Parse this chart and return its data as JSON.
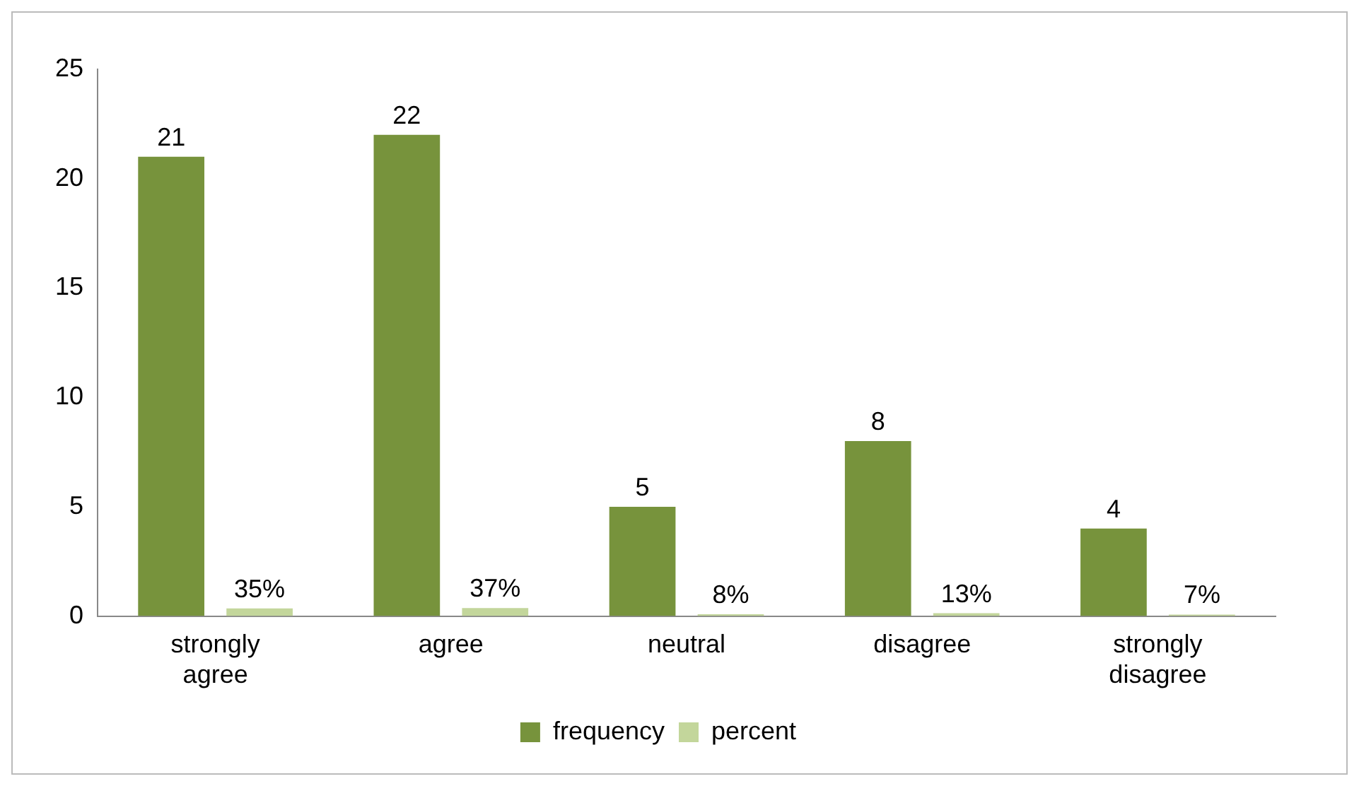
{
  "chart_data": {
    "type": "bar",
    "categories": [
      "strongly agree",
      "agree",
      "neutral",
      "disagree",
      "strongly disagree"
    ],
    "series": [
      {
        "name": "frequency",
        "color": "#77933c",
        "values": [
          21,
          22,
          5,
          8,
          4
        ],
        "value_labels": [
          "21",
          "22",
          "5",
          "8",
          "4"
        ]
      },
      {
        "name": "percent",
        "color": "#c3d69b",
        "values": [
          0.35,
          0.37,
          0.08,
          0.13,
          0.07
        ],
        "value_labels": [
          "35%",
          "37%",
          "8%",
          "13%",
          "7%"
        ]
      }
    ],
    "ylim": [
      0,
      25
    ],
    "yticks": [
      0,
      5,
      10,
      15,
      20,
      25
    ],
    "grid": false,
    "legend": "bottom"
  }
}
